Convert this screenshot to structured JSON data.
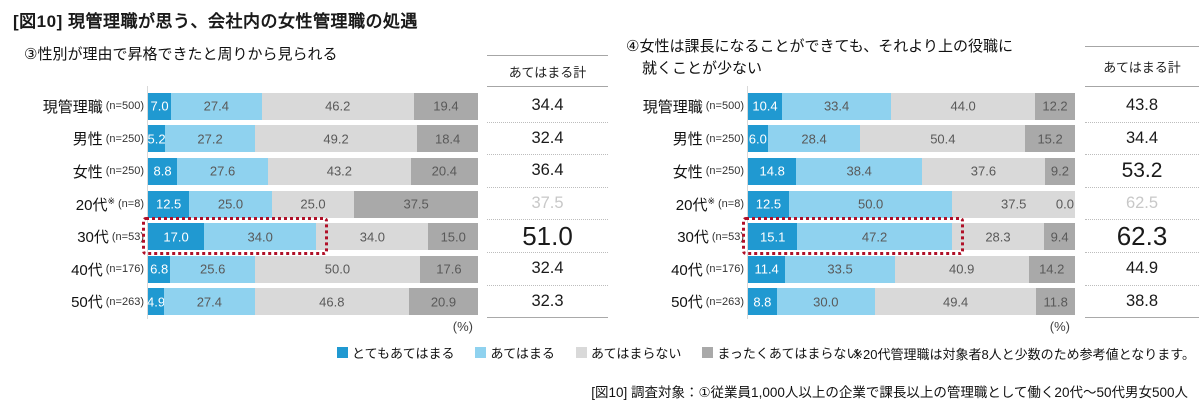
{
  "page": {
    "title": "[図10] 現管理職が思う、会社内の女性管理職の処遇",
    "note": "※20代管理職は対象者8人と少数のため参考値となります。",
    "caption": "[図10] 調査対象：①従業員1,000人以上の企業で課長以上の管理職として働く20代～50代男女500人",
    "percent_label": "(%)"
  },
  "colors": {
    "very_applicable": "#2099d1",
    "applicable": "#8fd2ef",
    "not_applicable": "#d9d9d9",
    "not_at_all": "#a9a9a9",
    "highlight_border": "#b01028"
  },
  "legend": [
    {
      "name": "legend-very-applicable",
      "label": "とてもあてはまる",
      "color": "#2099d1"
    },
    {
      "name": "legend-applicable",
      "label": "あてはまる",
      "color": "#8fd2ef"
    },
    {
      "name": "legend-not-applicable",
      "label": "あてはまらない",
      "color": "#d9d9d9"
    },
    {
      "name": "legend-not-at-all",
      "label": "まったくあてはまらない",
      "color": "#a9a9a9"
    }
  ],
  "chart_data": [
    {
      "type": "bar",
      "stacked": true,
      "orientation": "horizontal",
      "xlim": [
        0,
        100
      ],
      "unit": "%",
      "title_lines": [
        "③性別が理由で昇格できたと周りから見られる"
      ],
      "total_header": "あてはまる計",
      "series": [
        "とてもあてはまる",
        "あてはまる",
        "あてはまらない",
        "まったくあてはまらない"
      ],
      "rows": [
        {
          "category": "現管理職",
          "mark": "",
          "n": "(n=500)",
          "values": [
            7.0,
            27.4,
            46.2,
            19.4
          ],
          "total": "34.4",
          "total_style": "normal",
          "muted": false,
          "highlight": false
        },
        {
          "category": "男性",
          "mark": "",
          "n": "(n=250)",
          "values": [
            5.2,
            27.2,
            49.2,
            18.4
          ],
          "total": "32.4",
          "total_style": "normal",
          "muted": false,
          "highlight": false
        },
        {
          "category": "女性",
          "mark": "",
          "n": "(n=250)",
          "values": [
            8.8,
            27.6,
            43.2,
            20.4
          ],
          "total": "36.4",
          "total_style": "normal",
          "muted": false,
          "highlight": false
        },
        {
          "category": "20代",
          "mark": "※",
          "n": "(n=8)",
          "values": [
            12.5,
            25.0,
            25.0,
            37.5
          ],
          "total": "37.5",
          "total_style": "normal",
          "muted": true,
          "highlight": false
        },
        {
          "category": "30代",
          "mark": "",
          "n": "(n=53)",
          "values": [
            17.0,
            34.0,
            34.0,
            15.0
          ],
          "total": "51.0",
          "total_style": "large",
          "muted": false,
          "highlight": true
        },
        {
          "category": "40代",
          "mark": "",
          "n": "(n=176)",
          "values": [
            6.8,
            25.6,
            50.0,
            17.6
          ],
          "total": "32.4",
          "total_style": "normal",
          "muted": false,
          "highlight": false
        },
        {
          "category": "50代",
          "mark": "",
          "n": "(n=263)",
          "values": [
            4.9,
            27.4,
            46.8,
            20.9
          ],
          "total": "32.3",
          "total_style": "normal",
          "muted": false,
          "highlight": false
        }
      ]
    },
    {
      "type": "bar",
      "stacked": true,
      "orientation": "horizontal",
      "xlim": [
        0,
        100
      ],
      "unit": "%",
      "title_lines": [
        "④女性は課長になることができても、それより上の役職に",
        "就くことが少ない"
      ],
      "total_header": "あてはまる計",
      "series": [
        "とてもあてはまる",
        "あてはまる",
        "あてはまらない",
        "まったくあてはまらない"
      ],
      "rows": [
        {
          "category": "現管理職",
          "mark": "",
          "n": "(n=500)",
          "values": [
            10.4,
            33.4,
            44.0,
            12.2
          ],
          "total": "43.8",
          "total_style": "normal",
          "muted": false,
          "highlight": false
        },
        {
          "category": "男性",
          "mark": "",
          "n": "(n=250)",
          "values": [
            6.0,
            28.4,
            50.4,
            15.2
          ],
          "total": "34.4",
          "total_style": "normal",
          "muted": false,
          "highlight": false
        },
        {
          "category": "女性",
          "mark": "",
          "n": "(n=250)",
          "values": [
            14.8,
            38.4,
            37.6,
            9.2
          ],
          "total": "53.2",
          "total_style": "medium",
          "muted": false,
          "highlight": false
        },
        {
          "category": "20代",
          "mark": "※",
          "n": "(n=8)",
          "values": [
            12.5,
            50.0,
            37.5,
            0.0
          ],
          "total": "62.5",
          "total_style": "normal",
          "muted": true,
          "highlight": false
        },
        {
          "category": "30代",
          "mark": "",
          "n": "(n=53)",
          "values": [
            15.1,
            47.2,
            28.3,
            9.4
          ],
          "total": "62.3",
          "total_style": "large",
          "muted": false,
          "highlight": true
        },
        {
          "category": "40代",
          "mark": "",
          "n": "(n=176)",
          "values": [
            11.4,
            33.5,
            40.9,
            14.2
          ],
          "total": "44.9",
          "total_style": "normal",
          "muted": false,
          "highlight": false
        },
        {
          "category": "50代",
          "mark": "",
          "n": "(n=263)",
          "values": [
            8.8,
            30.0,
            49.4,
            11.8
          ],
          "total": "38.8",
          "total_style": "normal",
          "muted": false,
          "highlight": false
        }
      ]
    }
  ]
}
